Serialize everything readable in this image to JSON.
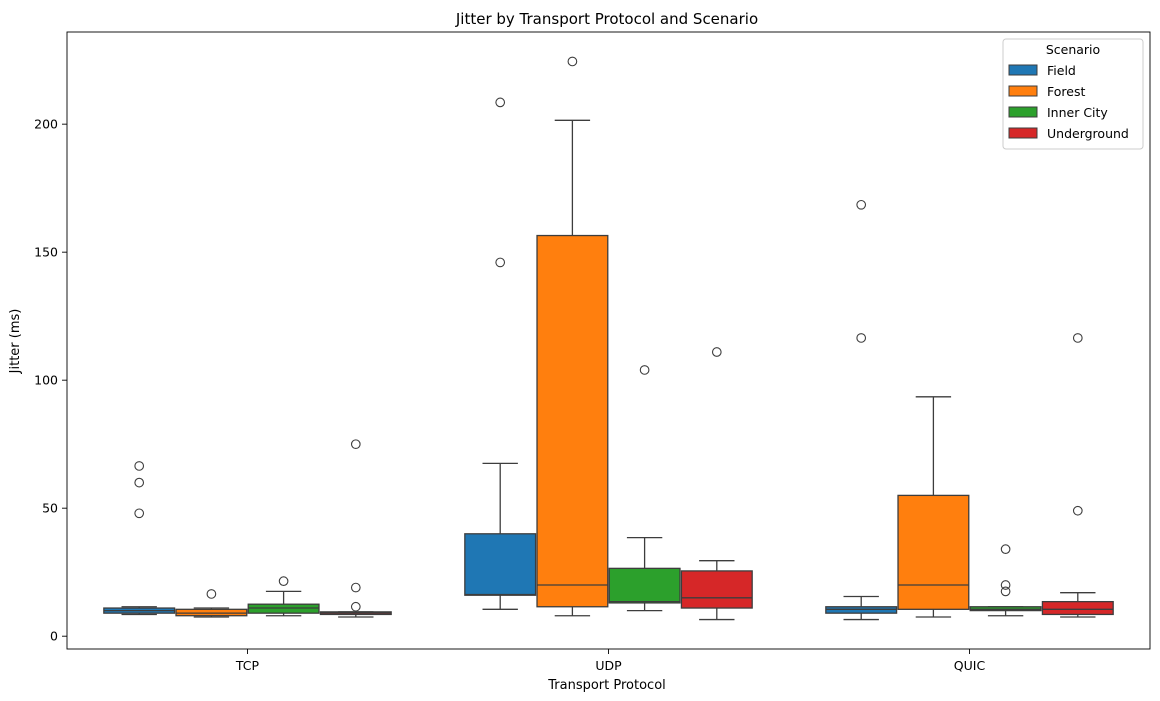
{
  "chart_data": {
    "type": "box",
    "title": "Jitter by Transport Protocol and Scenario",
    "xlabel": "Transport Protocol",
    "ylabel": "Jitter (ms)",
    "categories": [
      "TCP",
      "UDP",
      "QUIC"
    ],
    "ylim": [
      -5,
      236
    ],
    "yticks": [
      0,
      50,
      100,
      150,
      200
    ],
    "grid": false,
    "legend": {
      "title": "Scenario",
      "position": "top-right"
    },
    "series": [
      {
        "name": "Field",
        "color": "#1f77b4",
        "boxes": [
          {
            "whislo": 8.5,
            "q1": 9.0,
            "med": 10.0,
            "q3": 11.0,
            "whishi": 11.5,
            "fliers": [
              48,
              60,
              66.5
            ]
          },
          {
            "whislo": 10.5,
            "q1": 16.0,
            "med": 16.3,
            "q3": 40.0,
            "whishi": 67.5,
            "fliers": [
              146,
              208.5
            ]
          },
          {
            "whislo": 6.5,
            "q1": 9.0,
            "med": 10.5,
            "q3": 11.5,
            "whishi": 15.5,
            "fliers": [
              116.5,
              168.5
            ]
          }
        ]
      },
      {
        "name": "Forest",
        "color": "#ff7f0e",
        "boxes": [
          {
            "whislo": 7.5,
            "q1": 8.0,
            "med": 9.0,
            "q3": 10.5,
            "whishi": 11.0,
            "fliers": [
              16.5
            ]
          },
          {
            "whislo": 8.0,
            "q1": 11.5,
            "med": 20.0,
            "q3": 156.5,
            "whishi": 201.5,
            "fliers": [
              224.5
            ]
          },
          {
            "whislo": 7.5,
            "q1": 10.5,
            "med": 20.0,
            "q3": 55.0,
            "whishi": 93.5,
            "fliers": []
          }
        ]
      },
      {
        "name": "Inner City",
        "color": "#2ca02c",
        "boxes": [
          {
            "whislo": 8.0,
            "q1": 9.0,
            "med": 11.0,
            "q3": 12.5,
            "whishi": 17.5,
            "fliers": [
              21.5
            ]
          },
          {
            "whislo": 10.0,
            "q1": 13.0,
            "med": 13.5,
            "q3": 26.5,
            "whishi": 38.5,
            "fliers": [
              104
            ]
          },
          {
            "whislo": 8.0,
            "q1": 10.0,
            "med": 10.5,
            "q3": 11.5,
            "whishi": 11.5,
            "fliers": [
              17.5,
              20,
              34
            ]
          }
        ]
      },
      {
        "name": "Underground",
        "color": "#d62728",
        "boxes": [
          {
            "whislo": 7.5,
            "q1": 8.5,
            "med": 9.0,
            "q3": 9.5,
            "whishi": 9.5,
            "fliers": [
              11.5,
              19,
              75
            ]
          },
          {
            "whislo": 6.5,
            "q1": 11.0,
            "med": 15.0,
            "q3": 25.5,
            "whishi": 29.5,
            "fliers": [
              111
            ]
          },
          {
            "whislo": 7.5,
            "q1": 8.5,
            "med": 10.5,
            "q3": 13.5,
            "whishi": 17.0,
            "fliers": [
              49,
              116.5
            ]
          }
        ]
      }
    ]
  }
}
